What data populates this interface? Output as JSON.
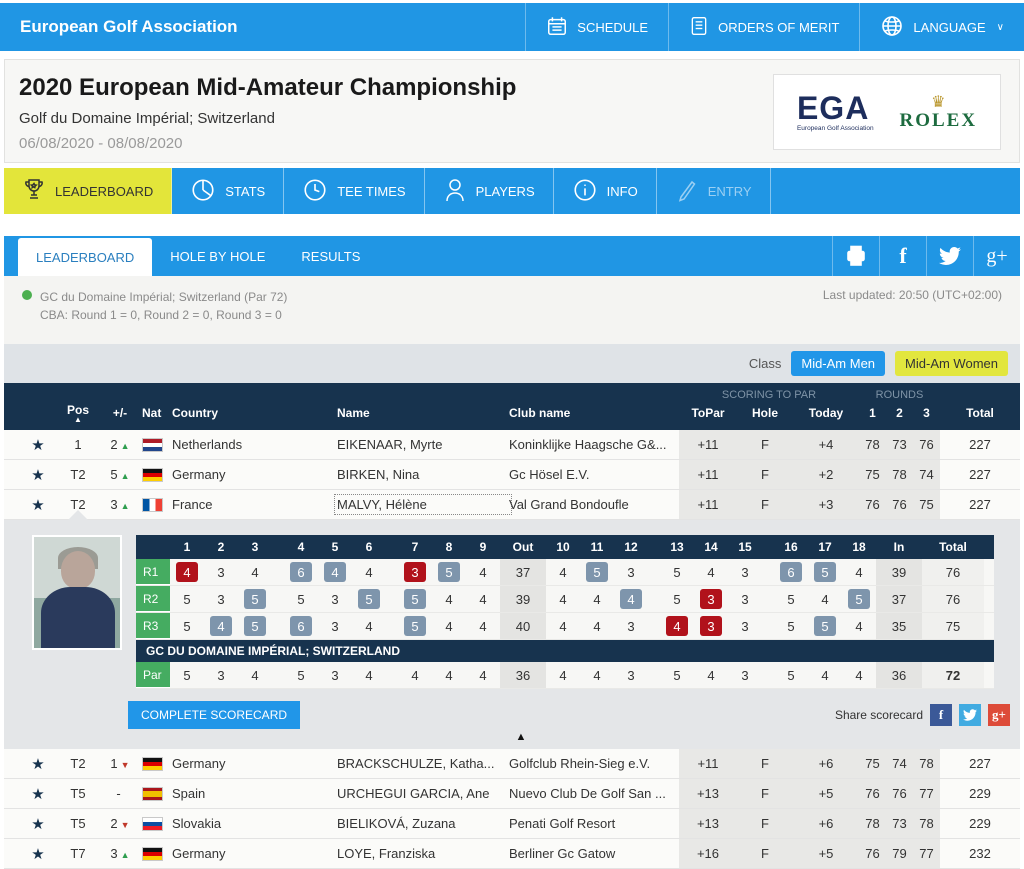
{
  "topbar": {
    "brand": "European Golf Association",
    "items": [
      {
        "label": "SCHEDULE",
        "icon": "calendar-icon"
      },
      {
        "label": "ORDERS OF MERIT",
        "icon": "list-icon"
      },
      {
        "label": "LANGUAGE",
        "icon": "globe-icon",
        "chevron": "∨"
      }
    ]
  },
  "header": {
    "title": "2020 European Mid-Amateur Championship",
    "venue": "Golf du Domaine Impérial; Switzerland",
    "dates": "06/08/2020 - 08/08/2020",
    "logos": {
      "ega_main": "EGA",
      "ega_sub": "European Golf Association",
      "rolex_name": "ROLEX",
      "rolex_crown": "♛"
    }
  },
  "main_tabs": [
    {
      "label": "LEADERBOARD",
      "icon": "trophy-icon",
      "state": "active"
    },
    {
      "label": "STATS",
      "icon": "stats-icon",
      "state": "normal"
    },
    {
      "label": "TEE TIMES",
      "icon": "clock-icon",
      "state": "normal"
    },
    {
      "label": "PLAYERS",
      "icon": "player-icon",
      "state": "normal"
    },
    {
      "label": "INFO",
      "icon": "info-icon",
      "state": "normal"
    },
    {
      "label": "ENTRY",
      "icon": "pen-icon",
      "state": "disabled"
    }
  ],
  "sub_tabs": [
    {
      "label": "LEADERBOARD",
      "state": "active"
    },
    {
      "label": "HOLE BY HOLE",
      "state": "normal"
    },
    {
      "label": "RESULTS",
      "state": "normal"
    }
  ],
  "social_icons": [
    "print-icon",
    "facebook-icon",
    "twitter-icon",
    "google-plus-icon"
  ],
  "status": {
    "course_line": "GC du Domaine Impérial; Switzerland (Par 72)",
    "cba_line": "CBA: Round 1 = 0, Round 2 = 0, Round 3 = 0",
    "last_updated": "Last updated: 20:50 (UTC+02:00)"
  },
  "class_filter": {
    "label": "Class",
    "buttons": [
      {
        "label": "Mid-Am Men",
        "style": "blue"
      },
      {
        "label": "Mid-Am Women",
        "style": "yellow"
      }
    ]
  },
  "table": {
    "group_scoring": "SCORING TO PAR",
    "group_rounds": "ROUNDS",
    "headers": {
      "pos": "Pos",
      "pm": "+/-",
      "nat": "Nat",
      "country": "Country",
      "name": "Name",
      "club": "Club name",
      "topar": "ToPar",
      "hole": "Hole",
      "today": "Today",
      "r1": "1",
      "r2": "2",
      "r3": "3",
      "total": "Total"
    },
    "expanded_row_index": 2,
    "rows": [
      {
        "pos": "1",
        "move": "2",
        "dir": "up",
        "flag": "nl",
        "country": "Netherlands",
        "name": "EIKENAAR, Myrte",
        "club": "Koninklijke Haagsche G&...",
        "topar": "+11",
        "hole": "F",
        "today": "+4",
        "r1": "78",
        "r2": "73",
        "r3": "76",
        "total": "227"
      },
      {
        "pos": "T2",
        "move": "5",
        "dir": "up",
        "flag": "de",
        "country": "Germany",
        "name": "BIRKEN, Nina",
        "club": "Gc Hösel E.V.",
        "topar": "+11",
        "hole": "F",
        "today": "+2",
        "r1": "75",
        "r2": "78",
        "r3": "74",
        "total": "227"
      },
      {
        "pos": "T2",
        "move": "3",
        "dir": "up",
        "flag": "fr",
        "country": "France",
        "name": "MALVY, Hélène",
        "club": "Val Grand Bondoufle",
        "topar": "+11",
        "hole": "F",
        "today": "+3",
        "r1": "76",
        "r2": "76",
        "r3": "75",
        "total": "227",
        "focused": true
      },
      {
        "pos": "T2",
        "move": "1",
        "dir": "down",
        "flag": "de",
        "country": "Germany",
        "name": "BRACKSCHULZE, Katha...",
        "club": "Golfclub Rhein-Sieg e.V.",
        "topar": "+11",
        "hole": "F",
        "today": "+6",
        "r1": "75",
        "r2": "74",
        "r3": "78",
        "total": "227"
      },
      {
        "pos": "T5",
        "move": "-",
        "dir": "none",
        "flag": "es",
        "country": "Spain",
        "name": "URCHEGUI GARCIA, Ane",
        "club": "Nuevo Club De Golf San ...",
        "topar": "+13",
        "hole": "F",
        "today": "+5",
        "r1": "76",
        "r2": "76",
        "r3": "77",
        "total": "229"
      },
      {
        "pos": "T5",
        "move": "2",
        "dir": "down",
        "flag": "sk",
        "country": "Slovakia",
        "name": "BIELIKOVÁ, Zuzana",
        "club": "Penati Golf Resort",
        "topar": "+13",
        "hole": "F",
        "today": "+6",
        "r1": "78",
        "r2": "73",
        "r3": "78",
        "total": "229"
      },
      {
        "pos": "T7",
        "move": "3",
        "dir": "up",
        "flag": "de",
        "country": "Germany",
        "name": "LOYE, Franziska",
        "club": "Berliner Gc Gatow",
        "topar": "+16",
        "hole": "F",
        "today": "+5",
        "r1": "76",
        "r2": "79",
        "r3": "77",
        "total": "232"
      }
    ]
  },
  "scorecard": {
    "hole_headers": [
      "1",
      "2",
      "3",
      "4",
      "5",
      "6",
      "7",
      "8",
      "9",
      "Out",
      "10",
      "11",
      "12",
      "13",
      "14",
      "15",
      "16",
      "17",
      "18",
      "In",
      "Total"
    ],
    "rounds": [
      {
        "label": "R1",
        "scores": [
          "4",
          "3",
          "4",
          "6",
          "4",
          "4",
          "3",
          "5",
          "4",
          "37",
          "4",
          "5",
          "3",
          "5",
          "4",
          "3",
          "6",
          "5",
          "4",
          "39",
          "76"
        ],
        "marks": [
          "u",
          "",
          "",
          "o",
          "o",
          "",
          "u",
          "o",
          "",
          "",
          "",
          "o",
          "",
          "",
          "",
          "",
          "o",
          "o",
          "",
          "",
          ""
        ]
      },
      {
        "label": "R2",
        "scores": [
          "5",
          "3",
          "5",
          "5",
          "3",
          "5",
          "5",
          "4",
          "4",
          "39",
          "4",
          "4",
          "4",
          "5",
          "3",
          "3",
          "5",
          "4",
          "5",
          "37",
          "76"
        ],
        "marks": [
          "",
          "",
          "o",
          "",
          "",
          "o",
          "o",
          "",
          "",
          "",
          "",
          "",
          "o",
          "",
          "u",
          "",
          "",
          "",
          "o",
          "",
          ""
        ]
      },
      {
        "label": "R3",
        "scores": [
          "5",
          "4",
          "5",
          "6",
          "3",
          "4",
          "5",
          "4",
          "4",
          "40",
          "4",
          "4",
          "3",
          "4",
          "3",
          "3",
          "5",
          "5",
          "4",
          "35",
          "75"
        ],
        "marks": [
          "",
          "o",
          "o",
          "o",
          "",
          "",
          "o",
          "",
          "",
          "",
          "",
          "",
          "",
          "u",
          "u",
          "",
          "",
          "o",
          "",
          "",
          ""
        ]
      }
    ],
    "course_banner": "GC DU DOMAINE IMPÉRIAL; SWITZERLAND",
    "par": {
      "label": "Par",
      "scores": [
        "5",
        "3",
        "4",
        "5",
        "3",
        "4",
        "4",
        "4",
        "4",
        "36",
        "4",
        "4",
        "3",
        "5",
        "4",
        "3",
        "5",
        "4",
        "4",
        "36",
        "72"
      ]
    },
    "complete_button": "COMPLETE SCORECARD",
    "share_label": "Share scorecard",
    "legend": {
      "under_par_color": "#B1121B",
      "over_par_color": "#7E95AC"
    }
  },
  "colors": {
    "brand_blue": "#2096E4",
    "navy": "#17334E",
    "active_yellow": "#E3E53A",
    "round_green": "#45AC61",
    "status_green": "#4CAF50"
  }
}
